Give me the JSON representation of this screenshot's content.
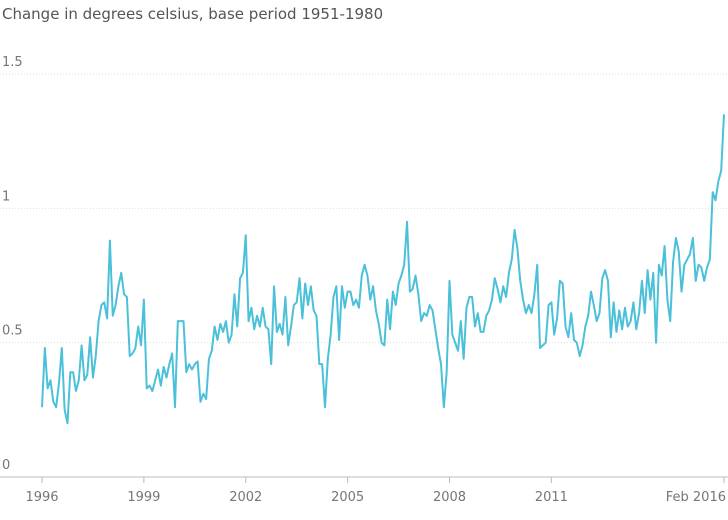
{
  "chart_data": {
    "type": "line",
    "title": "Change in degrees celsius, base period 1951-1980",
    "x": [
      "1996-01",
      "1996-02",
      "1996-03",
      "1996-04",
      "1996-05",
      "1996-06",
      "1996-07",
      "1996-08",
      "1996-09",
      "1996-10",
      "1996-11",
      "1996-12",
      "1997-01",
      "1997-02",
      "1997-03",
      "1997-04",
      "1997-05",
      "1997-06",
      "1997-07",
      "1997-08",
      "1997-09",
      "1997-10",
      "1997-11",
      "1997-12",
      "1998-01",
      "1998-02",
      "1998-03",
      "1998-04",
      "1998-05",
      "1998-06",
      "1998-07",
      "1998-08",
      "1998-09",
      "1998-10",
      "1998-11",
      "1998-12",
      "1999-01",
      "1999-02",
      "1999-03",
      "1999-04",
      "1999-05",
      "1999-06",
      "1999-07",
      "1999-08",
      "1999-09",
      "1999-10",
      "1999-11",
      "1999-12",
      "2000-01",
      "2000-02",
      "2000-03",
      "2000-04",
      "2000-05",
      "2000-06",
      "2000-07",
      "2000-08",
      "2000-09",
      "2000-10",
      "2000-11",
      "2000-12",
      "2001-01",
      "2001-02",
      "2001-03",
      "2001-04",
      "2001-05",
      "2001-06",
      "2001-07",
      "2001-08",
      "2001-09",
      "2001-10",
      "2001-11",
      "2001-12",
      "2002-01",
      "2002-02",
      "2002-03",
      "2002-04",
      "2002-05",
      "2002-06",
      "2002-07",
      "2002-08",
      "2002-09",
      "2002-10",
      "2002-11",
      "2002-12",
      "2003-01",
      "2003-02",
      "2003-03",
      "2003-04",
      "2003-05",
      "2003-06",
      "2003-07",
      "2003-08",
      "2003-09",
      "2003-10",
      "2003-11",
      "2003-12",
      "2004-01",
      "2004-02",
      "2004-03",
      "2004-04",
      "2004-05",
      "2004-06",
      "2004-07",
      "2004-08",
      "2004-09",
      "2004-10",
      "2004-11",
      "2004-12",
      "2005-01",
      "2005-02",
      "2005-03",
      "2005-04",
      "2005-05",
      "2005-06",
      "2005-07",
      "2005-08",
      "2005-09",
      "2005-10",
      "2005-11",
      "2005-12",
      "2006-01",
      "2006-02",
      "2006-03",
      "2006-04",
      "2006-05",
      "2006-06",
      "2006-07",
      "2006-08",
      "2006-09",
      "2006-10",
      "2006-11",
      "2006-12",
      "2007-01",
      "2007-02",
      "2007-03",
      "2007-04",
      "2007-05",
      "2007-06",
      "2007-07",
      "2007-08",
      "2007-09",
      "2007-10",
      "2007-11",
      "2007-12",
      "2008-01",
      "2008-02",
      "2008-03",
      "2008-04",
      "2008-05",
      "2008-06",
      "2008-07",
      "2008-08",
      "2008-09",
      "2008-10",
      "2008-11",
      "2008-12",
      "2009-01",
      "2009-02",
      "2009-03",
      "2009-04",
      "2009-05",
      "2009-06",
      "2009-07",
      "2009-08",
      "2009-09",
      "2009-10",
      "2009-11",
      "2009-12",
      "2010-01",
      "2010-02",
      "2010-03",
      "2010-04",
      "2010-05",
      "2010-06",
      "2010-07",
      "2010-08",
      "2010-09",
      "2010-10",
      "2010-11",
      "2010-12",
      "2011-01",
      "2011-02",
      "2011-03",
      "2011-04",
      "2011-05",
      "2011-06",
      "2011-07",
      "2011-08",
      "2011-09",
      "2011-10",
      "2011-11",
      "2011-12",
      "2012-01",
      "2012-02",
      "2012-03",
      "2012-04",
      "2012-05",
      "2012-06",
      "2012-07",
      "2012-08",
      "2012-09",
      "2012-10",
      "2012-11",
      "2012-12",
      "2013-01",
      "2013-02",
      "2013-03",
      "2013-04",
      "2013-05",
      "2013-06",
      "2013-07",
      "2013-08",
      "2013-09",
      "2013-10",
      "2013-11",
      "2013-12",
      "2014-01",
      "2014-02",
      "2014-03",
      "2014-04",
      "2014-05",
      "2014-06",
      "2014-07",
      "2014-08",
      "2014-09",
      "2014-10",
      "2014-11",
      "2014-12",
      "2015-01",
      "2015-02",
      "2015-03",
      "2015-04",
      "2015-05",
      "2015-06",
      "2015-07",
      "2015-08",
      "2015-09",
      "2015-10",
      "2015-11",
      "2015-12",
      "2016-01",
      "2016-02"
    ],
    "series": [
      {
        "color": "#4bc0d9",
        "values": [
          0.26,
          0.48,
          0.33,
          0.36,
          0.28,
          0.26,
          0.35,
          0.48,
          0.25,
          0.2,
          0.39,
          0.39,
          0.32,
          0.36,
          0.49,
          0.36,
          0.38,
          0.52,
          0.37,
          0.45,
          0.58,
          0.64,
          0.65,
          0.59,
          0.88,
          0.6,
          0.64,
          0.71,
          0.76,
          0.68,
          0.67,
          0.45,
          0.46,
          0.48,
          0.56,
          0.49,
          0.66,
          0.33,
          0.34,
          0.32,
          0.36,
          0.4,
          0.34,
          0.41,
          0.37,
          0.42,
          0.46,
          0.26,
          0.58,
          0.58,
          0.58,
          0.39,
          0.42,
          0.4,
          0.42,
          0.43,
          0.28,
          0.31,
          0.29,
          0.44,
          0.47,
          0.56,
          0.51,
          0.57,
          0.54,
          0.58,
          0.5,
          0.53,
          0.68,
          0.56,
          0.74,
          0.76,
          0.9,
          0.58,
          0.63,
          0.55,
          0.6,
          0.56,
          0.63,
          0.56,
          0.55,
          0.42,
          0.71,
          0.54,
          0.57,
          0.53,
          0.67,
          0.49,
          0.56,
          0.64,
          0.65,
          0.74,
          0.59,
          0.72,
          0.64,
          0.71,
          0.62,
          0.6,
          0.42,
          0.42,
          0.26,
          0.44,
          0.53,
          0.67,
          0.71,
          0.51,
          0.71,
          0.63,
          0.69,
          0.69,
          0.64,
          0.66,
          0.63,
          0.75,
          0.79,
          0.75,
          0.66,
          0.71,
          0.62,
          0.57,
          0.5,
          0.49,
          0.66,
          0.55,
          0.69,
          0.64,
          0.72,
          0.75,
          0.79,
          0.95,
          0.69,
          0.7,
          0.75,
          0.68,
          0.58,
          0.61,
          0.6,
          0.64,
          0.62,
          0.55,
          0.48,
          0.42,
          0.26,
          0.39,
          0.73,
          0.53,
          0.5,
          0.47,
          0.58,
          0.44,
          0.63,
          0.67,
          0.67,
          0.56,
          0.61,
          0.54,
          0.54,
          0.6,
          0.62,
          0.66,
          0.74,
          0.7,
          0.65,
          0.71,
          0.67,
          0.76,
          0.81,
          0.92,
          0.85,
          0.73,
          0.66,
          0.61,
          0.64,
          0.61,
          0.68,
          0.79,
          0.48,
          0.49,
          0.5,
          0.64,
          0.65,
          0.53,
          0.59,
          0.73,
          0.72,
          0.56,
          0.52,
          0.61,
          0.51,
          0.5,
          0.45,
          0.49,
          0.56,
          0.6,
          0.69,
          0.64,
          0.58,
          0.61,
          0.74,
          0.77,
          0.73,
          0.52,
          0.65,
          0.54,
          0.62,
          0.55,
          0.63,
          0.56,
          0.58,
          0.65,
          0.55,
          0.61,
          0.73,
          0.61,
          0.77,
          0.66,
          0.76,
          0.5,
          0.79,
          0.75,
          0.86,
          0.66,
          0.58,
          0.8,
          0.89,
          0.84,
          0.69,
          0.79,
          0.81,
          0.83,
          0.89,
          0.73,
          0.79,
          0.78,
          0.73,
          0.78,
          0.81,
          1.06,
          1.03,
          1.1,
          1.14,
          1.35
        ]
      }
    ],
    "xlim": [
      "1996-01",
      "2016-02"
    ],
    "xticks": [
      {
        "value": "1996-01",
        "label": "1996"
      },
      {
        "value": "1999-01",
        "label": "1999"
      },
      {
        "value": "2002-01",
        "label": "2002"
      },
      {
        "value": "2005-01",
        "label": "2005"
      },
      {
        "value": "2008-01",
        "label": "2008"
      },
      {
        "value": "2011-01",
        "label": "2011"
      },
      {
        "value": "2016-02",
        "label": "Feb 2016"
      }
    ],
    "ylim": [
      0,
      1.5
    ],
    "yticks": [
      0,
      0.5,
      1,
      1.5
    ],
    "grid": true
  }
}
